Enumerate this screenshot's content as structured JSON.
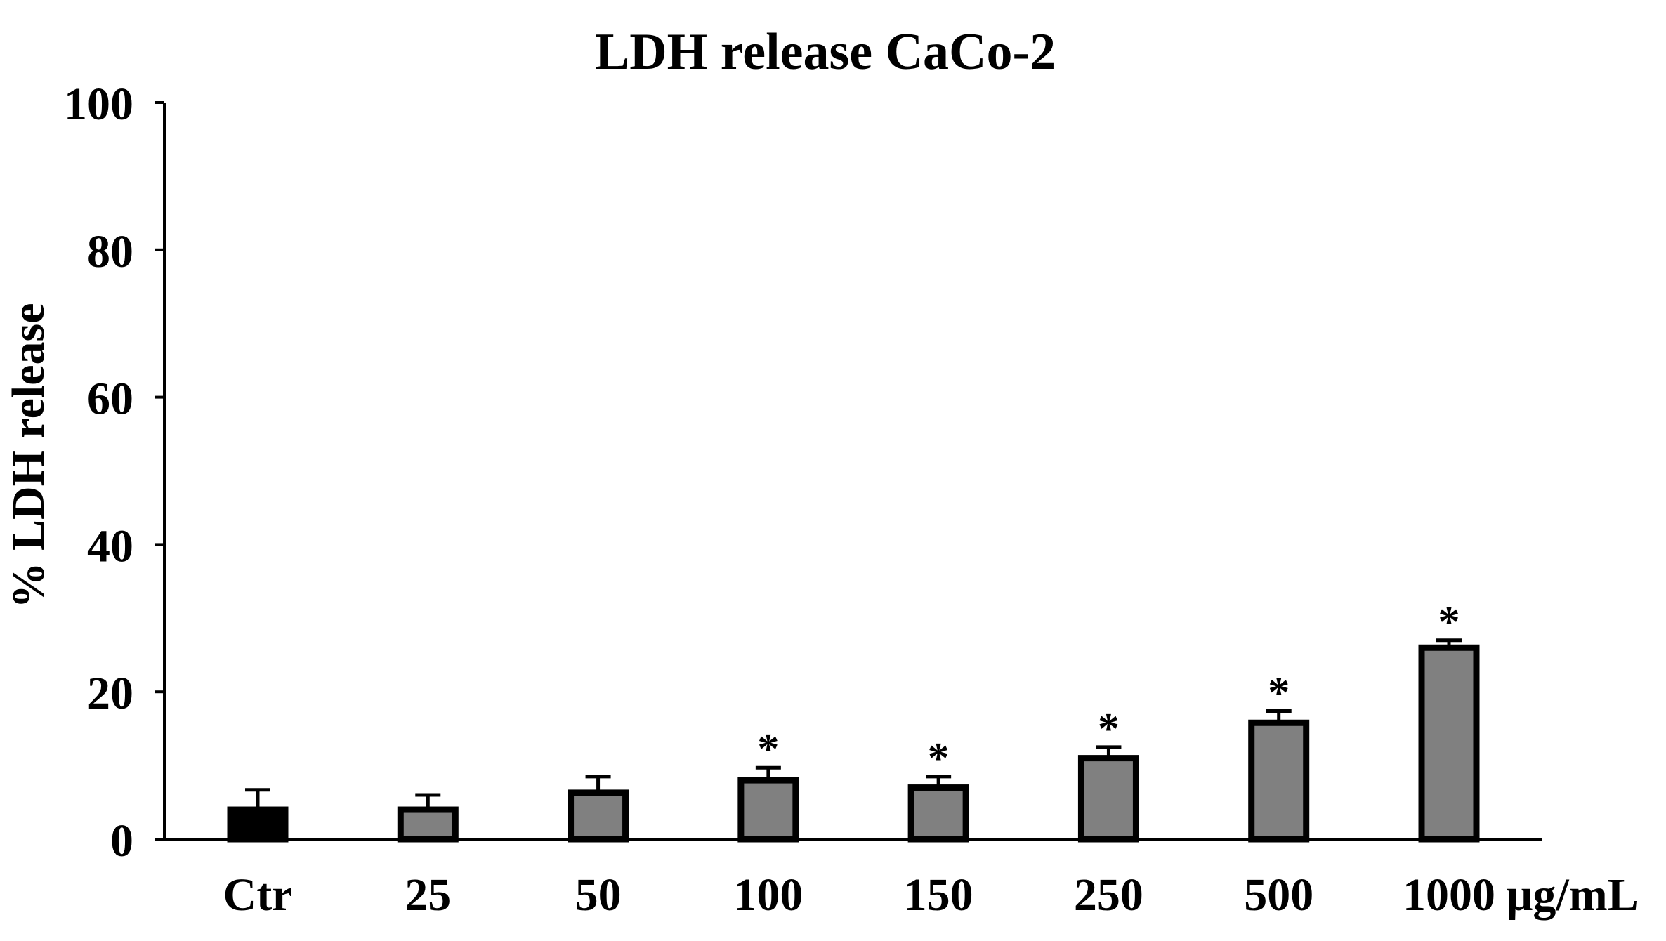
{
  "chart_data": {
    "type": "bar",
    "title": "LDH release CaCo-2",
    "xlabel": "",
    "ylabel": "% LDH release",
    "unit_label": "μg/mL",
    "ylim": [
      0,
      100
    ],
    "yticks": [
      0,
      20,
      40,
      60,
      80,
      100
    ],
    "grid": false,
    "legend": "none",
    "categories": [
      "Ctr",
      "25",
      "50",
      "100",
      "150",
      "250",
      "500",
      "1000"
    ],
    "values": [
      4.0,
      4.0,
      6.3,
      8.0,
      7.0,
      11.0,
      15.8,
      26.0
    ],
    "errors": [
      2.7,
      2.0,
      2.2,
      1.7,
      1.5,
      1.5,
      1.6,
      1.0
    ],
    "significant": [
      false,
      false,
      false,
      true,
      true,
      true,
      true,
      true
    ],
    "significance_marker": "*",
    "colors": {
      "control_bar": "#000000",
      "treatment_bar": "#808080",
      "bar_outline": "#000000",
      "axis": "#000000"
    }
  }
}
